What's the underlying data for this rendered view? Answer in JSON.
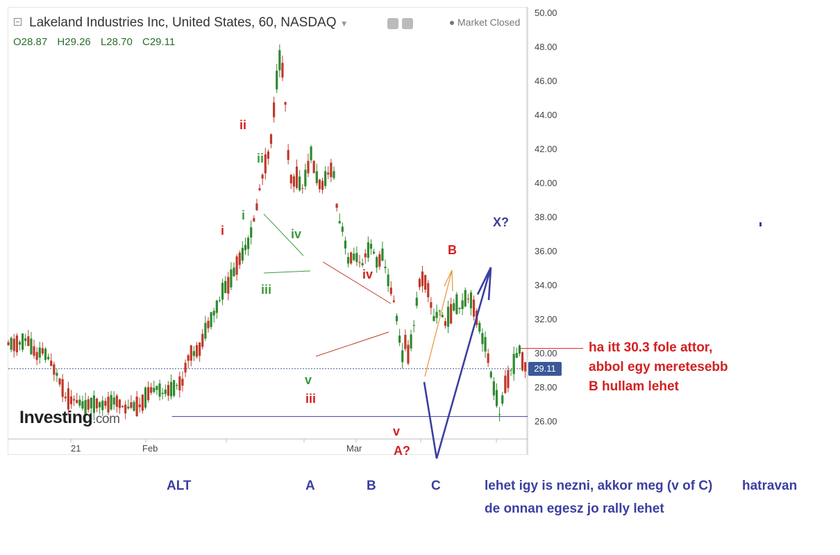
{
  "header": {
    "title": "Lakeland Industries Inc, United States, 60, NASDAQ",
    "ohlc": {
      "open": "O28.87",
      "high": "H29.26",
      "low": "L28.70",
      "close": "C29.11"
    },
    "market_status": "Market Closed",
    "logo_main": "Investing",
    "logo_suffix": ".com"
  },
  "colors": {
    "up": "#2f8a2f",
    "down": "#c0392b",
    "price_tag": "#3b5998",
    "annotation_red": "#d42020",
    "annotation_blue": "#3b3fa0",
    "annotation_green": "#3a9a3a"
  },
  "chart_data": {
    "type": "candlestick",
    "symbol": "Lakeland Industries Inc",
    "interval": "60",
    "exchange": "NASDAQ",
    "ylim": [
      24.9,
      50.3
    ],
    "y_ticks": [
      "50.00",
      "48.00",
      "46.00",
      "44.00",
      "42.00",
      "40.00",
      "38.00",
      "36.00",
      "34.00",
      "32.00",
      "30.00",
      "28.00",
      "26.00"
    ],
    "x_ticks": [
      "21",
      "Feb",
      "Mar"
    ],
    "last_price": "29.11",
    "price_series": [
      {
        "pos": 0.0,
        "value": 30.5
      },
      {
        "pos": 2.6,
        "value": 30.6
      },
      {
        "pos": 3.6,
        "value": 30.9
      },
      {
        "pos": 5.5,
        "value": 29.8
      },
      {
        "pos": 6.7,
        "value": 30.2
      },
      {
        "pos": 8.0,
        "value": 29.5
      },
      {
        "pos": 9.5,
        "value": 28.8
      },
      {
        "pos": 11.0,
        "value": 27.5
      },
      {
        "pos": 13.0,
        "value": 27.2
      },
      {
        "pos": 15.0,
        "value": 26.9
      },
      {
        "pos": 17.0,
        "value": 27.1
      },
      {
        "pos": 19.0,
        "value": 27.0
      },
      {
        "pos": 21.0,
        "value": 27.2
      },
      {
        "pos": 22.5,
        "value": 26.8
      },
      {
        "pos": 24.0,
        "value": 27.0
      },
      {
        "pos": 25.5,
        "value": 26.9
      },
      {
        "pos": 27.0,
        "value": 27.6
      },
      {
        "pos": 28.5,
        "value": 28.1
      },
      {
        "pos": 30.0,
        "value": 27.6
      },
      {
        "pos": 31.5,
        "value": 28.0
      },
      {
        "pos": 33.5,
        "value": 28.3
      },
      {
        "pos": 34.5,
        "value": 29.8
      },
      {
        "pos": 35.5,
        "value": 30.0
      },
      {
        "pos": 37.0,
        "value": 30.4
      },
      {
        "pos": 38.5,
        "value": 31.8
      },
      {
        "pos": 40.0,
        "value": 32.6
      },
      {
        "pos": 41.5,
        "value": 33.8
      },
      {
        "pos": 42.5,
        "value": 34.1
      },
      {
        "pos": 44.0,
        "value": 35.2
      },
      {
        "pos": 45.5,
        "value": 36.2
      },
      {
        "pos": 46.5,
        "value": 36.7
      },
      {
        "pos": 47.5,
        "value": 38.1
      },
      {
        "pos": 48.5,
        "value": 39.8
      },
      {
        "pos": 49.5,
        "value": 41.2
      },
      {
        "pos": 50.5,
        "value": 42.2
      },
      {
        "pos": 51.5,
        "value": 45.6
      },
      {
        "pos": 52.5,
        "value": 47.7
      },
      {
        "pos": 53.3,
        "value": 45.0
      },
      {
        "pos": 54.0,
        "value": 41.0
      },
      {
        "pos": 54.7,
        "value": 39.8
      },
      {
        "pos": 55.5,
        "value": 40.5
      },
      {
        "pos": 56.5,
        "value": 39.6
      },
      {
        "pos": 57.5,
        "value": 40.6
      },
      {
        "pos": 58.2,
        "value": 41.8
      },
      {
        "pos": 59.5,
        "value": 40.2
      },
      {
        "pos": 60.5,
        "value": 39.8
      },
      {
        "pos": 61.5,
        "value": 40.5
      },
      {
        "pos": 62.5,
        "value": 41.1
      },
      {
        "pos": 63.5,
        "value": 38.0
      },
      {
        "pos": 64.5,
        "value": 37.2
      },
      {
        "pos": 65.5,
        "value": 35.4
      },
      {
        "pos": 67.0,
        "value": 35.8
      },
      {
        "pos": 68.0,
        "value": 35.0
      },
      {
        "pos": 69.0,
        "value": 35.9
      },
      {
        "pos": 70.0,
        "value": 36.3
      },
      {
        "pos": 71.0,
        "value": 35.3
      },
      {
        "pos": 72.0,
        "value": 35.8
      },
      {
        "pos": 73.0,
        "value": 34.5
      },
      {
        "pos": 74.0,
        "value": 33.4
      },
      {
        "pos": 75.0,
        "value": 31.8
      },
      {
        "pos": 75.8,
        "value": 29.6
      },
      {
        "pos": 76.5,
        "value": 30.8
      },
      {
        "pos": 77.0,
        "value": 30.0
      },
      {
        "pos": 78.0,
        "value": 31.4
      },
      {
        "pos": 79.0,
        "value": 34.0
      },
      {
        "pos": 80.0,
        "value": 34.6
      },
      {
        "pos": 81.0,
        "value": 33.5
      },
      {
        "pos": 82.0,
        "value": 32.0
      },
      {
        "pos": 83.0,
        "value": 32.6
      },
      {
        "pos": 84.0,
        "value": 31.8
      },
      {
        "pos": 85.0,
        "value": 32.2
      },
      {
        "pos": 86.0,
        "value": 32.9
      },
      {
        "pos": 87.0,
        "value": 32.7
      },
      {
        "pos": 88.0,
        "value": 33.2
      },
      {
        "pos": 89.0,
        "value": 33.3
      },
      {
        "pos": 90.0,
        "value": 32.4
      },
      {
        "pos": 91.0,
        "value": 31.2
      },
      {
        "pos": 92.0,
        "value": 30.4
      },
      {
        "pos": 93.0,
        "value": 28.6
      },
      {
        "pos": 94.0,
        "value": 27.4
      },
      {
        "pos": 94.7,
        "value": 26.3
      },
      {
        "pos": 95.5,
        "value": 28.0
      },
      {
        "pos": 96.5,
        "value": 28.8
      },
      {
        "pos": 97.5,
        "value": 29.4
      },
      {
        "pos": 98.3,
        "value": 30.3
      },
      {
        "pos": 99.0,
        "value": 29.6
      },
      {
        "pos": 100.0,
        "value": 29.1
      }
    ],
    "horizontal_lines": [
      {
        "name": "last-price-line",
        "value": 29.11,
        "from": 0,
        "to": 100
      },
      {
        "name": "support-line",
        "value": 26.3,
        "from": 31.5,
        "to": 100
      },
      {
        "name": "trigger-line",
        "value": 30.3,
        "from": 98.3,
        "to": 100
      }
    ],
    "annotations": [
      {
        "text": "i",
        "color": "red"
      },
      {
        "text": "ii",
        "color": "red"
      },
      {
        "text": "iii",
        "color": "red"
      },
      {
        "text": "iv",
        "color": "red"
      },
      {
        "text": "v",
        "color": "red"
      },
      {
        "text": "A?",
        "color": "red"
      },
      {
        "text": "B",
        "color": "red"
      },
      {
        "text": "i",
        "color": "green"
      },
      {
        "text": "ii",
        "color": "green"
      },
      {
        "text": "iii",
        "color": "green"
      },
      {
        "text": "iv",
        "color": "green"
      },
      {
        "text": "v",
        "color": "green"
      },
      {
        "text": "X?",
        "color": "blue"
      }
    ]
  },
  "note_lines": [
    "ha itt 30.3 fole attor,",
    "abbol egy meretesebb",
    "B hullam lehet"
  ],
  "bottom": {
    "alt": "ALT",
    "a": "A",
    "b": "B",
    "c": "C",
    "line1": "lehet igy is nezni, akkor meg (v of C)",
    "line1_tail": "hatravan",
    "line2": "de onnan egesz jo rally lehet"
  }
}
